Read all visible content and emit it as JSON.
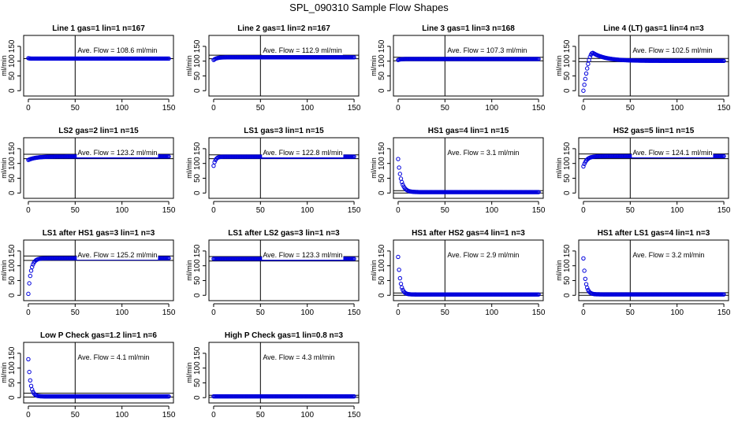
{
  "title": "SPL_090310  Sample Flow Shapes",
  "chart_data": [
    {
      "type": "scatter",
      "title": "Line 1 gas=1 lin=1 n=167",
      "ylabel": "ml/min",
      "xlim": [
        0,
        150
      ],
      "ylim": [
        0,
        180
      ],
      "xticks": [
        0,
        50,
        100,
        150
      ],
      "yticks": [
        0,
        50,
        100,
        150
      ],
      "avg_text": "Ave. Flow = 108.6  ml/min",
      "hlines": [
        108.6
      ],
      "vline": 50,
      "shape": {
        "y0": 110,
        "plateau": 108.6,
        "rate": 1.0
      }
    },
    {
      "type": "scatter",
      "title": "Line 2 gas=1 lin=2 n=167",
      "ylabel": "ml/min",
      "xlim": [
        0,
        150
      ],
      "ylim": [
        0,
        180
      ],
      "xticks": [
        0,
        50,
        100,
        150
      ],
      "yticks": [
        0,
        50,
        100,
        150
      ],
      "avg_text": "Ave. Flow = 112.9  ml/min",
      "hlines": [
        120,
        108
      ],
      "vline": 50,
      "shape": {
        "y0": 104,
        "plateau": 113,
        "rate": 0.3
      }
    },
    {
      "type": "scatter",
      "title": "Line 3 gas=1 lin=3 n=168",
      "ylabel": "ml/min",
      "xlim": [
        0,
        150
      ],
      "ylim": [
        0,
        180
      ],
      "xticks": [
        0,
        50,
        100,
        150
      ],
      "yticks": [
        0,
        50,
        100,
        150
      ],
      "avg_text": "Ave. Flow = 107.3  ml/min",
      "hlines": [
        113,
        101
      ],
      "vline": 50,
      "shape": {
        "y0": 104,
        "plateau": 107.3,
        "rate": 0.4
      }
    },
    {
      "type": "scatter",
      "title": "Line 4 (LT) gas=1 lin=4 n=3",
      "ylabel": "ml/min",
      "xlim": [
        0,
        150
      ],
      "ylim": [
        0,
        180
      ],
      "xticks": [
        0,
        50,
        100,
        150
      ],
      "yticks": [
        0,
        50,
        100,
        150
      ],
      "avg_text": "Ave. Flow = 102.5  ml/min",
      "hlines": [
        109,
        98
      ],
      "vline": 50,
      "shape": {
        "overshoot": true,
        "y0": 0,
        "peak": 128,
        "peak_x": 10,
        "plateau": 101
      }
    },
    {
      "type": "scatter",
      "title": "LS2 gas=2 lin=1 n=15",
      "ylabel": "ml/min",
      "xlim": [
        0,
        150
      ],
      "ylim": [
        0,
        180
      ],
      "xticks": [
        0,
        50,
        100,
        150
      ],
      "yticks": [
        0,
        50,
        100,
        150
      ],
      "avg_text": "Ave. Flow = 123.2  ml/min",
      "hlines": [
        131,
        116
      ],
      "vline": 50,
      "shape": {
        "y0": 112,
        "plateau": 123.5,
        "rate": 0.12
      }
    },
    {
      "type": "scatter",
      "title": "LS1 gas=3 lin=1 n=15",
      "ylabel": "ml/min",
      "xlim": [
        0,
        150
      ],
      "ylim": [
        0,
        180
      ],
      "xticks": [
        0,
        50,
        100,
        150
      ],
      "yticks": [
        0,
        50,
        100,
        150
      ],
      "avg_text": "Ave. Flow = 122.8  ml/min",
      "hlines": [
        129,
        116
      ],
      "vline": 50,
      "shape": {
        "y0": 92,
        "plateau": 123,
        "rate": 0.5
      }
    },
    {
      "type": "scatter",
      "title": "HS1 gas=4 lin=1 n=15",
      "ylabel": "ml/min",
      "xlim": [
        0,
        150
      ],
      "ylim": [
        0,
        180
      ],
      "xticks": [
        0,
        50,
        100,
        150
      ],
      "yticks": [
        0,
        50,
        100,
        150
      ],
      "avg_text": "Ave. Flow = 3.1  ml/min",
      "hlines": [
        8,
        0
      ],
      "vline": 50,
      "shape": {
        "y0": 115,
        "plateau": 3.1,
        "rate": 0.3
      }
    },
    {
      "type": "scatter",
      "title": "HS2 gas=5 lin=1 n=15",
      "ylabel": "ml/min",
      "xlim": [
        0,
        150
      ],
      "ylim": [
        0,
        180
      ],
      "xticks": [
        0,
        50,
        100,
        150
      ],
      "yticks": [
        0,
        50,
        100,
        150
      ],
      "avg_text": "Ave. Flow = 124.1  ml/min",
      "hlines": [
        132,
        116
      ],
      "vline": 50,
      "shape": {
        "y0": 90,
        "plateau": 124.5,
        "rate": 0.28
      }
    },
    {
      "type": "scatter",
      "title": "LS1 after HS1 gas=3 lin=1 n=3",
      "ylabel": "ml/min",
      "xlim": [
        0,
        150
      ],
      "ylim": [
        0,
        180
      ],
      "xticks": [
        0,
        50,
        100,
        150
      ],
      "yticks": [
        0,
        50,
        100,
        150
      ],
      "avg_text": "Ave. Flow = 125.2  ml/min",
      "hlines": [
        133,
        118
      ],
      "vline": 50,
      "shape": {
        "y0": 5,
        "plateau": 125.5,
        "rate": 0.35
      }
    },
    {
      "type": "scatter",
      "title": "LS1 after LS2 gas=3 lin=1 n=3",
      "ylabel": "ml/min",
      "xlim": [
        0,
        150
      ],
      "ylim": [
        0,
        180
      ],
      "xticks": [
        0,
        50,
        100,
        150
      ],
      "yticks": [
        0,
        50,
        100,
        150
      ],
      "avg_text": "Ave. Flow = 123.3  ml/min",
      "hlines": [
        131,
        116
      ],
      "vline": 50,
      "shape": {
        "y0": 123.5,
        "plateau": 123.5,
        "rate": 1.0
      }
    },
    {
      "type": "scatter",
      "title": "HS1 after HS2 gas=4 lin=1 n=3",
      "ylabel": "ml/min",
      "xlim": [
        0,
        150
      ],
      "ylim": [
        0,
        180
      ],
      "xticks": [
        0,
        50,
        100,
        150
      ],
      "yticks": [
        0,
        50,
        100,
        150
      ],
      "avg_text": "Ave. Flow = 2.9  ml/min",
      "hlines": [
        8,
        0
      ],
      "vline": 50,
      "shape": {
        "y0": 130,
        "plateau": 2.9,
        "rate": 0.42
      }
    },
    {
      "type": "scatter",
      "title": "HS1 after LS1 gas=4 lin=1 n=3",
      "ylabel": "ml/min",
      "xlim": [
        0,
        150
      ],
      "ylim": [
        0,
        180
      ],
      "xticks": [
        0,
        50,
        100,
        150
      ],
      "yticks": [
        0,
        50,
        100,
        150
      ],
      "avg_text": "Ave. Flow = 3.2  ml/min",
      "hlines": [
        9,
        0
      ],
      "vline": 50,
      "shape": {
        "y0": 125,
        "plateau": 3.2,
        "rate": 0.42
      }
    },
    {
      "type": "scatter",
      "title": "Low P Check gas=1.2 lin=1 n=6",
      "ylabel": "ml/min",
      "xlim": [
        0,
        150
      ],
      "ylim": [
        0,
        180
      ],
      "xticks": [
        0,
        50,
        100,
        150
      ],
      "yticks": [
        0,
        50,
        100,
        150
      ],
      "avg_text": "Ave. Flow = 4.1  ml/min",
      "hlines": [
        15,
        2
      ],
      "vline": 50,
      "shape": {
        "y0": 130,
        "plateau": 4.1,
        "rate": 0.42
      }
    },
    {
      "type": "scatter",
      "title": "High P Check gas=1 lin=0.8 n=3",
      "ylabel": "ml/min",
      "xlim": [
        0,
        150
      ],
      "ylim": [
        0,
        180
      ],
      "xticks": [
        0,
        50,
        100,
        150
      ],
      "yticks": [
        0,
        50,
        100,
        150
      ],
      "avg_text": "Ave. Flow = 4.3  ml/min",
      "hlines": [
        8,
        1
      ],
      "vline": 50,
      "shape": {
        "y0": 4.3,
        "plateau": 4.3,
        "rate": 1.0
      }
    }
  ]
}
